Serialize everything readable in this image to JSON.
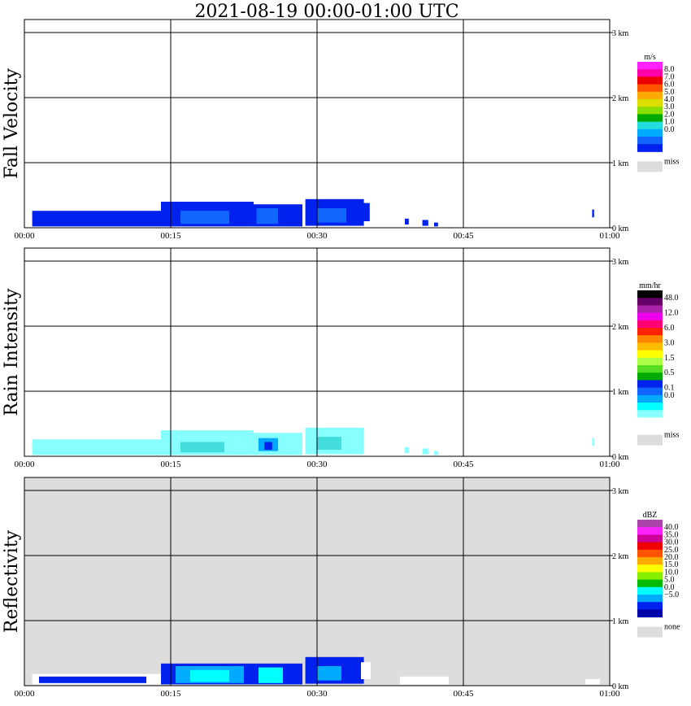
{
  "title": "2021-08-19   00:00-01:00 UTC",
  "x_axis": {
    "ticks": [
      "00:00",
      "00:15",
      "00:30",
      "00:45",
      "01:00"
    ],
    "range_min": [
      0,
      60
    ]
  },
  "y_axis": {
    "ticks": [
      "0 km",
      "1 km",
      "2 km",
      "3 km"
    ],
    "range_km": [
      0,
      3.0
    ]
  },
  "chart_data": [
    {
      "type": "heatmap",
      "ylabel": "Fall Velocity",
      "background": "#ffffff",
      "legend": {
        "unit": "m/s",
        "colors": [
          "#0022ee",
          "#1166ff",
          "#00aaff",
          "#22dddd",
          "#00aa00",
          "#88dd00",
          "#dddd00",
          "#ffaa00",
          "#ff5500",
          "#ee0000",
          "#ff00aa",
          "#ff22ff"
        ],
        "labels": [
          "8.0",
          "7.0",
          "6.0",
          "5.0",
          "4.0",
          "3.0",
          "2.0",
          "1.0",
          "0.0"
        ],
        "label_rows": [
          1,
          2,
          3,
          4,
          5,
          6,
          7,
          8,
          9
        ],
        "miss_label": "miss",
        "miss_color": "#dddddd"
      },
      "echoes": [
        {
          "t0": 0.8,
          "t1": 14.0,
          "h0": 0.02,
          "h1": 0.26,
          "color": "#0022ee"
        },
        {
          "t0": 14.0,
          "t1": 23.5,
          "h0": 0.02,
          "h1": 0.4,
          "color": "#0022ee"
        },
        {
          "t0": 16.0,
          "t1": 21.0,
          "h0": 0.06,
          "h1": 0.26,
          "color": "#1166ff"
        },
        {
          "t0": 23.5,
          "t1": 28.5,
          "h0": 0.02,
          "h1": 0.36,
          "color": "#0022ee"
        },
        {
          "t0": 23.8,
          "t1": 26.0,
          "h0": 0.06,
          "h1": 0.3,
          "color": "#1166ff"
        },
        {
          "t0": 28.8,
          "t1": 34.8,
          "h0": 0.03,
          "h1": 0.44,
          "color": "#0022ee"
        },
        {
          "t0": 30.0,
          "t1": 33.0,
          "h0": 0.08,
          "h1": 0.3,
          "color": "#1166ff"
        },
        {
          "t0": 34.4,
          "t1": 35.4,
          "h0": 0.1,
          "h1": 0.38,
          "color": "#0022ee"
        },
        {
          "t0": 39.0,
          "t1": 39.4,
          "h0": 0.05,
          "h1": 0.14,
          "color": "#0022ee"
        },
        {
          "t0": 40.8,
          "t1": 41.4,
          "h0": 0.03,
          "h1": 0.12,
          "color": "#0022ee"
        },
        {
          "t0": 42.0,
          "t1": 42.4,
          "h0": 0.02,
          "h1": 0.08,
          "color": "#0022ee"
        },
        {
          "t0": 58.2,
          "t1": 58.4,
          "h0": 0.16,
          "h1": 0.28,
          "color": "#0022ee"
        }
      ]
    },
    {
      "type": "heatmap",
      "ylabel": "Rain Intensity",
      "background": "#ffffff",
      "legend": {
        "unit": "mm/hr",
        "colors": [
          "#ffffff",
          "#88ffff",
          "#00ffff",
          "#00aaff",
          "#1166ff",
          "#0022ee",
          "#00aa00",
          "#55dd22",
          "#aaff44",
          "#ffff00",
          "#ffbb00",
          "#ff8800",
          "#ff2200",
          "#ff0077",
          "#ee00ee",
          "#aa22aa",
          "#660066",
          "#000000"
        ],
        "labels": [
          "48.0",
          "12.0",
          "6.0",
          "3.0",
          "1.5",
          "0.5",
          "0.1",
          "0.0"
        ],
        "label_rows": [
          1,
          3,
          5,
          7,
          9,
          11,
          13,
          14
        ],
        "miss_label": "miss",
        "miss_color": "#dddddd"
      },
      "echoes": [
        {
          "t0": 0.8,
          "t1": 14.0,
          "h0": 0.02,
          "h1": 0.26,
          "color": "#88ffff"
        },
        {
          "t0": 14.0,
          "t1": 23.5,
          "h0": 0.02,
          "h1": 0.4,
          "color": "#88ffff"
        },
        {
          "t0": 16.0,
          "t1": 20.5,
          "h0": 0.06,
          "h1": 0.22,
          "color": "#44dddd"
        },
        {
          "t0": 23.5,
          "t1": 28.5,
          "h0": 0.02,
          "h1": 0.36,
          "color": "#88ffff"
        },
        {
          "t0": 24.0,
          "t1": 26.0,
          "h0": 0.08,
          "h1": 0.28,
          "color": "#00aaff"
        },
        {
          "t0": 24.6,
          "t1": 25.4,
          "h0": 0.1,
          "h1": 0.22,
          "color": "#0022ee"
        },
        {
          "t0": 28.8,
          "t1": 34.8,
          "h0": 0.03,
          "h1": 0.44,
          "color": "#88ffff"
        },
        {
          "t0": 30.0,
          "t1": 32.5,
          "h0": 0.1,
          "h1": 0.3,
          "color": "#44dddd"
        },
        {
          "t0": 39.0,
          "t1": 39.4,
          "h0": 0.05,
          "h1": 0.14,
          "color": "#88ffff"
        },
        {
          "t0": 40.8,
          "t1": 41.4,
          "h0": 0.03,
          "h1": 0.12,
          "color": "#88ffff"
        },
        {
          "t0": 42.0,
          "t1": 42.4,
          "h0": 0.02,
          "h1": 0.08,
          "color": "#88ffff"
        },
        {
          "t0": 58.2,
          "t1": 58.4,
          "h0": 0.16,
          "h1": 0.28,
          "color": "#88ffff"
        }
      ]
    },
    {
      "type": "heatmap",
      "ylabel": "Reflectivity",
      "background": "#dddddd",
      "legend": {
        "unit": "dBZ",
        "colors": [
          "#0000aa",
          "#0022ee",
          "#00aaff",
          "#00ffff",
          "#00bb00",
          "#88ee00",
          "#ffff00",
          "#ffaa00",
          "#ff5500",
          "#ee0000",
          "#cc0099",
          "#ff22ff",
          "#aa44aa"
        ],
        "labels": [
          "40.0",
          "35.0",
          "30.0",
          "25.0",
          "20.0",
          "15.0",
          "10.0",
          "5.0",
          "0.0",
          "−5.0"
        ],
        "label_rows": [
          1,
          2,
          3,
          4,
          5,
          6,
          7,
          8,
          9,
          10
        ],
        "miss_label": "none",
        "miss_color": "#dddddd"
      },
      "echoes": [
        {
          "t0": 0.8,
          "t1": 14.0,
          "h0": 0.02,
          "h1": 0.18,
          "color": "#ffffff"
        },
        {
          "t0": 1.5,
          "t1": 12.5,
          "h0": 0.04,
          "h1": 0.14,
          "color": "#0022ee"
        },
        {
          "t0": 14.0,
          "t1": 23.5,
          "h0": 0.02,
          "h1": 0.34,
          "color": "#0022ee"
        },
        {
          "t0": 15.5,
          "t1": 22.5,
          "h0": 0.04,
          "h1": 0.3,
          "color": "#00aaff"
        },
        {
          "t0": 17.0,
          "t1": 21.0,
          "h0": 0.06,
          "h1": 0.24,
          "color": "#00ffff"
        },
        {
          "t0": 23.5,
          "t1": 28.5,
          "h0": 0.02,
          "h1": 0.34,
          "color": "#0022ee"
        },
        {
          "t0": 24.0,
          "t1": 26.5,
          "h0": 0.04,
          "h1": 0.28,
          "color": "#00ffff"
        },
        {
          "t0": 28.8,
          "t1": 34.8,
          "h0": 0.03,
          "h1": 0.44,
          "color": "#0022ee"
        },
        {
          "t0": 30.0,
          "t1": 32.5,
          "h0": 0.08,
          "h1": 0.3,
          "color": "#00aaff"
        },
        {
          "t0": 34.5,
          "t1": 35.5,
          "h0": 0.1,
          "h1": 0.36,
          "color": "#ffffff"
        },
        {
          "t0": 38.5,
          "t1": 43.5,
          "h0": 0.02,
          "h1": 0.14,
          "color": "#ffffff"
        },
        {
          "t0": 57.5,
          "t1": 59.0,
          "h0": 0.02,
          "h1": 0.1,
          "color": "#ffffff"
        }
      ]
    }
  ]
}
